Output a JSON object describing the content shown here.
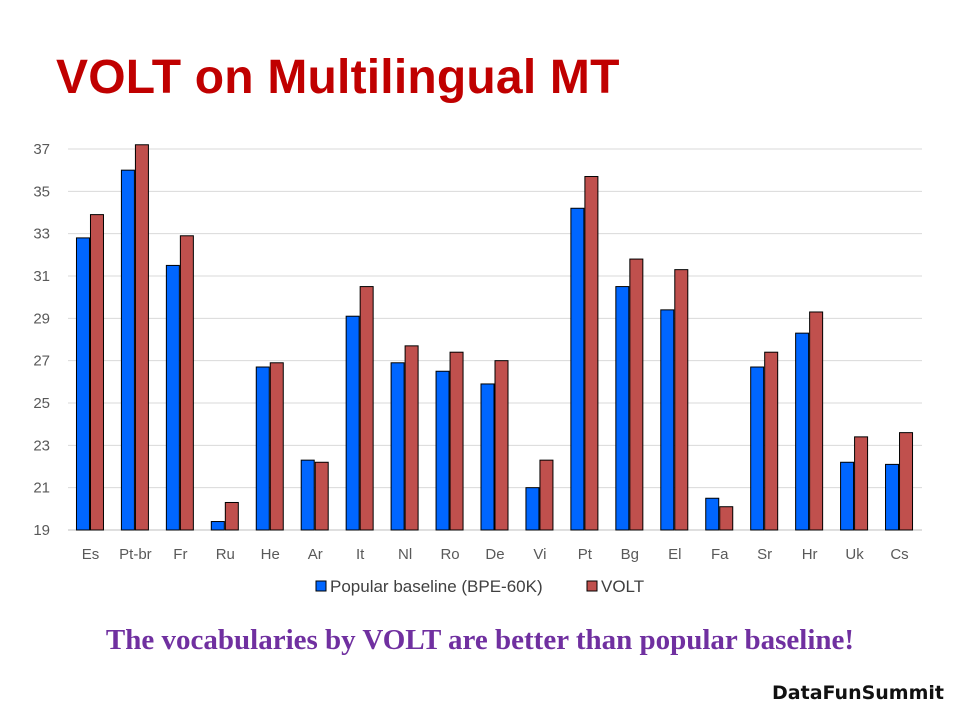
{
  "slide": {
    "title": "VOLT on Multilingual MT",
    "caption": "The vocabularies by VOLT are better than popular baseline!",
    "watermark": "DataFunSummit"
  },
  "chart_data": {
    "type": "bar",
    "title": "",
    "xlabel": "",
    "ylabel": "",
    "ylim": [
      19,
      37
    ],
    "yticks": [
      19,
      21,
      23,
      25,
      27,
      29,
      31,
      33,
      35,
      37
    ],
    "grid": true,
    "legend_position": "bottom",
    "categories": [
      "Es",
      "Pt-br",
      "Fr",
      "Ru",
      "He",
      "Ar",
      "It",
      "Nl",
      "Ro",
      "De",
      "Vi",
      "Pt",
      "Bg",
      "El",
      "Fa",
      "Sr",
      "Hr",
      "Uk",
      "Cs"
    ],
    "series": [
      {
        "name": "Popular baseline (BPE-60K)",
        "color": "#0066ff",
        "values": [
          32.8,
          36.0,
          31.5,
          19.4,
          26.7,
          22.3,
          29.1,
          26.9,
          26.5,
          25.9,
          21.0,
          34.2,
          30.5,
          29.4,
          20.5,
          26.7,
          28.3,
          22.2,
          22.1
        ]
      },
      {
        "name": "VOLT",
        "color": "#c0504d",
        "values": [
          33.9,
          37.2,
          32.9,
          20.3,
          26.9,
          22.2,
          30.5,
          27.7,
          27.4,
          27.0,
          22.3,
          35.7,
          31.8,
          31.3,
          20.1,
          27.4,
          29.3,
          23.4,
          23.6
        ]
      }
    ]
  }
}
